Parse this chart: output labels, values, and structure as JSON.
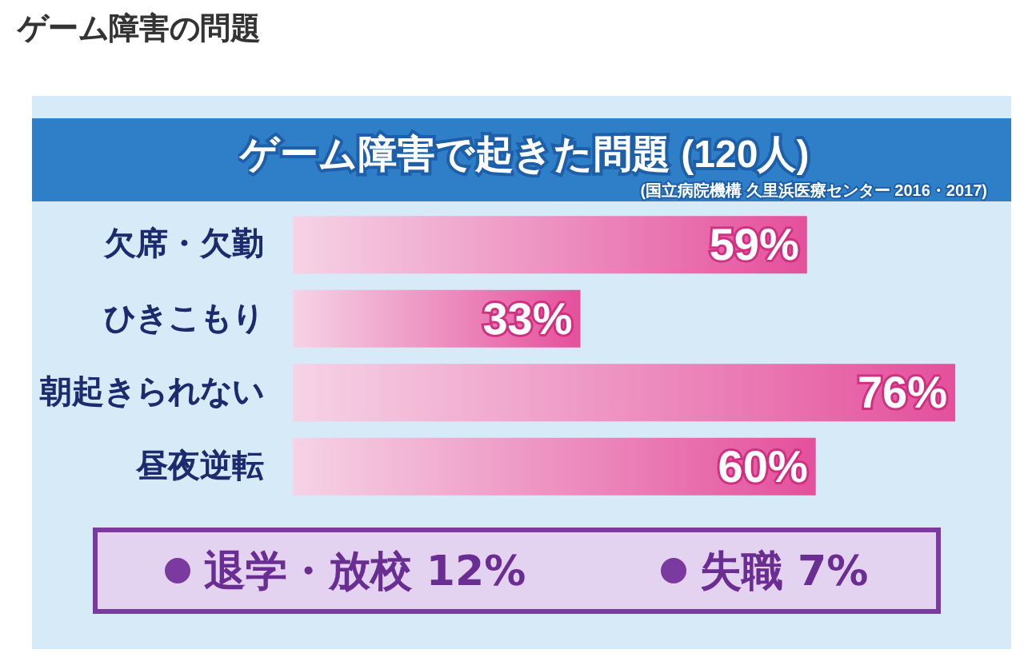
{
  "chart_data": {
    "type": "bar",
    "orientation": "horizontal",
    "title": "ゲーム障害の問題",
    "subtitle": "ゲーム障害で起きた問題 (120人)",
    "categories": [
      "欠席・欠勤",
      "ひきこもり",
      "朝起きられない",
      "昼夜逆転"
    ],
    "values": [
      59,
      33,
      76,
      60
    ],
    "value_labels": [
      "59%",
      "33%",
      "76%",
      "60%"
    ],
    "color": "#e4509c",
    "annotations": [
      "(国立病院機構 久里浜医療センター 2016・2017)",
      "退学・放校 12%",
      "失職 7%"
    ]
  }
}
